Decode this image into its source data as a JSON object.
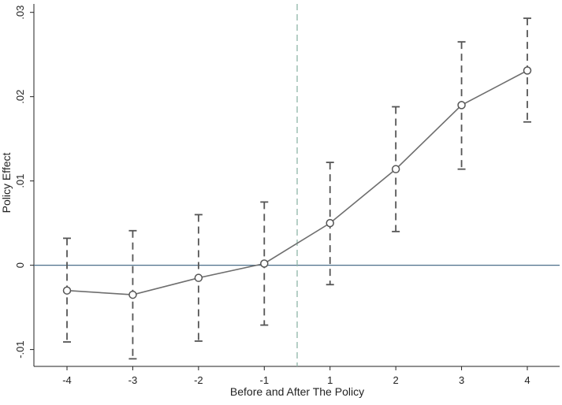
{
  "chart_data": {
    "type": "line",
    "title": "",
    "xlabel": "Before and After The Policy",
    "ylabel": "Policy Effect",
    "x": [
      -4,
      -3,
      -2,
      -1,
      1,
      2,
      3,
      4
    ],
    "x_tick_labels": [
      "-4",
      "-3",
      "-2",
      "-1",
      "1",
      "2",
      "3",
      "4"
    ],
    "y_tick_values": [
      -0.01,
      0,
      0.01,
      0.02,
      0.03
    ],
    "y_tick_labels": [
      "-.01",
      "0",
      ".01",
      ".02",
      ".03"
    ],
    "ylim": [
      -0.012,
      0.031
    ],
    "series": [
      {
        "type": "line-with-error-bars",
        "values": [
          -0.003,
          -0.0035,
          -0.0015,
          0.0002,
          0.005,
          0.0114,
          0.019,
          0.0231
        ],
        "ci_lower": [
          -0.0091,
          -0.0111,
          -0.009,
          -0.0071,
          -0.0023,
          0.004,
          0.0114,
          0.017
        ],
        "ci_upper": [
          0.0032,
          0.0041,
          0.006,
          0.0075,
          0.0122,
          0.0188,
          0.0265,
          0.0293
        ]
      }
    ],
    "reference_lines": {
      "horizontal_y": 0,
      "vertical_x_between": [
        -1,
        1
      ]
    },
    "colors": {
      "line": "#6e6e6e",
      "marker": "#555555",
      "error_bar": "#555555",
      "zero_line": "#4a6f8a",
      "vertical_line": "#8fb5a8",
      "axis": "#222222"
    },
    "grid": false,
    "legend": "none"
  }
}
